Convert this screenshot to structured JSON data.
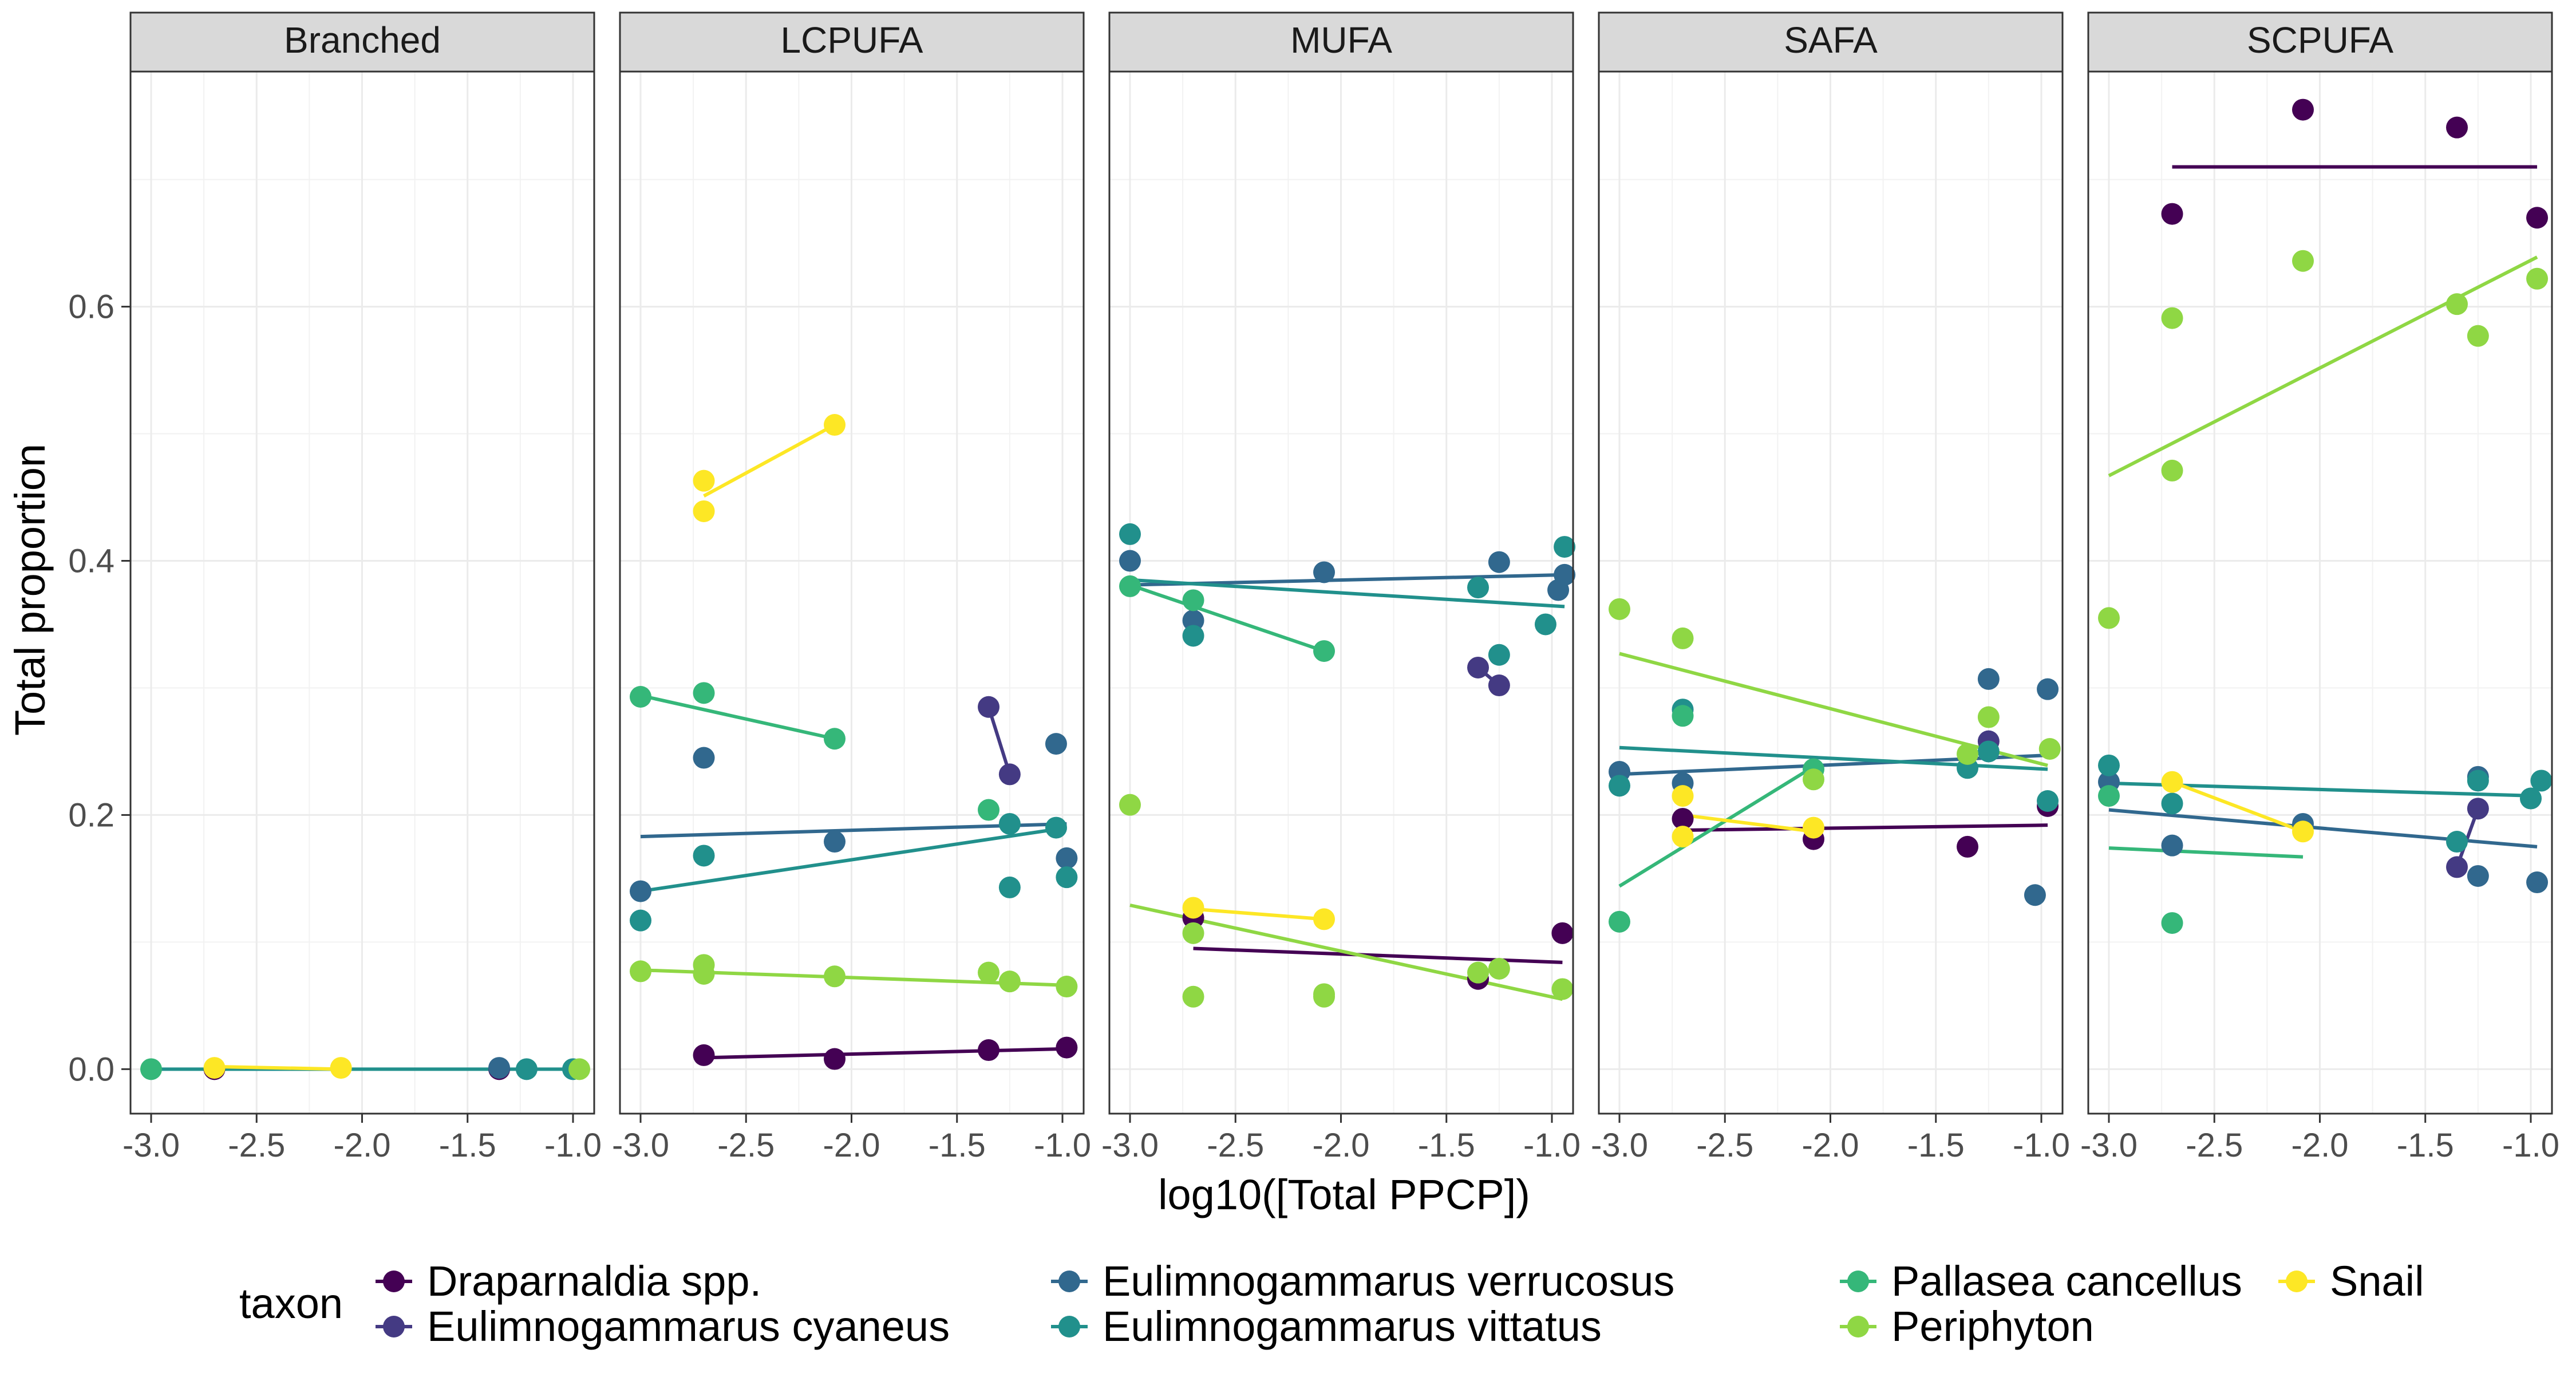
{
  "chart_data": {
    "type": "scatter",
    "xlabel": "log10([Total PPCP])",
    "ylabel": "Total proportion",
    "xlim": [
      -3.0,
      -0.9
    ],
    "ylim": [
      -0.035,
      0.785
    ],
    "x_ticks": [
      -3.0,
      -2.5,
      -2.0,
      -1.5,
      -1.0
    ],
    "x_tick_labels": [
      "-3.0",
      "-2.5",
      "-2.0",
      "-1.5",
      "-1.0"
    ],
    "y_ticks": [
      0.0,
      0.2,
      0.4,
      0.6
    ],
    "y_tick_labels": [
      "0.0",
      "0.2",
      "0.4",
      "0.6"
    ],
    "grid": true,
    "legend_title": "taxon",
    "legend_position": "bottom",
    "series": [
      {
        "name": "Draparnaldia spp.",
        "color": "#440154"
      },
      {
        "name": "Eulimnogammarus cyaneus",
        "color": "#443A83"
      },
      {
        "name": "Eulimnogammarus verrucosus",
        "color": "#31688E"
      },
      {
        "name": "Eulimnogammarus vittatus",
        "color": "#21908C"
      },
      {
        "name": "Pallasea cancellus",
        "color": "#35B779"
      },
      {
        "name": "Periphyton",
        "color": "#8FD744"
      },
      {
        "name": "Snail",
        "color": "#FDE725"
      }
    ],
    "panels": [
      {
        "title": "Branched",
        "points": [
          {
            "s": 0,
            "x": -2.7,
            "y": 0.0
          },
          {
            "s": 0,
            "x": -1.35,
            "y": 0.0
          },
          {
            "s": 2,
            "x": -1.35,
            "y": 0.001
          },
          {
            "s": 3,
            "x": -1.22,
            "y": 0.0
          },
          {
            "s": 3,
            "x": -1.0,
            "y": 0.0
          },
          {
            "s": 4,
            "x": -3.0,
            "y": 0.0
          },
          {
            "s": 5,
            "x": -0.97,
            "y": 0.0
          },
          {
            "s": 6,
            "x": -2.7,
            "y": 0.001
          },
          {
            "s": 6,
            "x": -2.1,
            "y": 0.001
          }
        ],
        "lines": [
          {
            "s": 3,
            "x": [
              -3.0,
              -0.97
            ],
            "y": [
              0.0,
              0.0
            ]
          },
          {
            "s": 6,
            "x": [
              -2.7,
              -2.1
            ],
            "y": [
              0.002,
              0.0
            ]
          }
        ]
      },
      {
        "title": "LCPUFA",
        "points": [
          {
            "s": 0,
            "x": -2.7,
            "y": 0.011
          },
          {
            "s": 0,
            "x": -2.08,
            "y": 0.008
          },
          {
            "s": 0,
            "x": -1.35,
            "y": 0.015
          },
          {
            "s": 0,
            "x": -0.98,
            "y": 0.017
          },
          {
            "s": 1,
            "x": -1.35,
            "y": 0.285
          },
          {
            "s": 1,
            "x": -1.25,
            "y": 0.232
          },
          {
            "s": 2,
            "x": -3.0,
            "y": 0.14
          },
          {
            "s": 2,
            "x": -2.7,
            "y": 0.245
          },
          {
            "s": 2,
            "x": -2.08,
            "y": 0.179
          },
          {
            "s": 2,
            "x": -1.03,
            "y": 0.256
          },
          {
            "s": 2,
            "x": -0.98,
            "y": 0.166
          },
          {
            "s": 3,
            "x": -3.0,
            "y": 0.117
          },
          {
            "s": 3,
            "x": -2.7,
            "y": 0.168
          },
          {
            "s": 3,
            "x": -1.25,
            "y": 0.143
          },
          {
            "s": 3,
            "x": -1.25,
            "y": 0.193
          },
          {
            "s": 3,
            "x": -1.03,
            "y": 0.19
          },
          {
            "s": 3,
            "x": -0.98,
            "y": 0.151
          },
          {
            "s": 4,
            "x": -3.0,
            "y": 0.293
          },
          {
            "s": 4,
            "x": -2.7,
            "y": 0.296
          },
          {
            "s": 4,
            "x": -2.08,
            "y": 0.26
          },
          {
            "s": 4,
            "x": -1.35,
            "y": 0.204
          },
          {
            "s": 5,
            "x": -3.0,
            "y": 0.077
          },
          {
            "s": 5,
            "x": -2.7,
            "y": 0.082
          },
          {
            "s": 5,
            "x": -2.7,
            "y": 0.075
          },
          {
            "s": 5,
            "x": -2.08,
            "y": 0.073
          },
          {
            "s": 5,
            "x": -1.35,
            "y": 0.076
          },
          {
            "s": 5,
            "x": -1.25,
            "y": 0.069
          },
          {
            "s": 5,
            "x": -0.98,
            "y": 0.065
          },
          {
            "s": 6,
            "x": -2.7,
            "y": 0.463
          },
          {
            "s": 6,
            "x": -2.7,
            "y": 0.439
          },
          {
            "s": 6,
            "x": -2.08,
            "y": 0.507
          }
        ],
        "lines": [
          {
            "s": 0,
            "x": [
              -2.7,
              -0.98
            ],
            "y": [
              0.009,
              0.016
            ]
          },
          {
            "s": 1,
            "x": [
              -1.35,
              -1.25
            ],
            "y": [
              0.285,
              0.232
            ]
          },
          {
            "s": 2,
            "x": [
              -3.0,
              -0.98
            ],
            "y": [
              0.183,
              0.193
            ]
          },
          {
            "s": 3,
            "x": [
              -3.0,
              -0.98
            ],
            "y": [
              0.14,
              0.19
            ]
          },
          {
            "s": 4,
            "x": [
              -3.0,
              -2.08
            ],
            "y": [
              0.294,
              0.26
            ]
          },
          {
            "s": 5,
            "x": [
              -3.0,
              -0.98
            ],
            "y": [
              0.078,
              0.066
            ]
          },
          {
            "s": 6,
            "x": [
              -2.7,
              -2.08
            ],
            "y": [
              0.451,
              0.507
            ]
          }
        ]
      },
      {
        "title": "MUFA",
        "points": [
          {
            "s": 0,
            "x": -2.7,
            "y": 0.119
          },
          {
            "s": 0,
            "x": -1.35,
            "y": 0.071
          },
          {
            "s": 0,
            "x": -0.95,
            "y": 0.107
          },
          {
            "s": 1,
            "x": -1.35,
            "y": 0.316
          },
          {
            "s": 1,
            "x": -1.25,
            "y": 0.302
          },
          {
            "s": 2,
            "x": -3.0,
            "y": 0.4
          },
          {
            "s": 2,
            "x": -2.7,
            "y": 0.353
          },
          {
            "s": 2,
            "x": -2.08,
            "y": 0.391
          },
          {
            "s": 2,
            "x": -1.25,
            "y": 0.399
          },
          {
            "s": 2,
            "x": -0.97,
            "y": 0.377
          },
          {
            "s": 2,
            "x": -0.94,
            "y": 0.389
          },
          {
            "s": 3,
            "x": -3.0,
            "y": 0.421
          },
          {
            "s": 3,
            "x": -2.7,
            "y": 0.341
          },
          {
            "s": 3,
            "x": -1.35,
            "y": 0.379
          },
          {
            "s": 3,
            "x": -1.25,
            "y": 0.326
          },
          {
            "s": 3,
            "x": -1.03,
            "y": 0.35
          },
          {
            "s": 3,
            "x": -0.94,
            "y": 0.411
          },
          {
            "s": 4,
            "x": -3.0,
            "y": 0.38
          },
          {
            "s": 4,
            "x": -2.7,
            "y": 0.369
          },
          {
            "s": 4,
            "x": -2.08,
            "y": 0.329
          },
          {
            "s": 5,
            "x": -3.0,
            "y": 0.208
          },
          {
            "s": 5,
            "x": -2.7,
            "y": 0.057
          },
          {
            "s": 5,
            "x": -2.7,
            "y": 0.107
          },
          {
            "s": 5,
            "x": -2.08,
            "y": 0.057
          },
          {
            "s": 5,
            "x": -2.08,
            "y": 0.059
          },
          {
            "s": 5,
            "x": -1.25,
            "y": 0.079
          },
          {
            "s": 5,
            "x": -1.35,
            "y": 0.076
          },
          {
            "s": 5,
            "x": -0.95,
            "y": 0.063
          },
          {
            "s": 6,
            "x": -2.7,
            "y": 0.127
          },
          {
            "s": 6,
            "x": -2.08,
            "y": 0.118
          }
        ],
        "lines": [
          {
            "s": 0,
            "x": [
              -2.7,
              -0.95
            ],
            "y": [
              0.095,
              0.084
            ]
          },
          {
            "s": 1,
            "x": [
              -1.35,
              -1.25
            ],
            "y": [
              0.316,
              0.302
            ]
          },
          {
            "s": 2,
            "x": [
              -3.0,
              -0.94
            ],
            "y": [
              0.381,
              0.389
            ]
          },
          {
            "s": 3,
            "x": [
              -3.0,
              -0.94
            ],
            "y": [
              0.385,
              0.364
            ]
          },
          {
            "s": 4,
            "x": [
              -3.0,
              -2.08
            ],
            "y": [
              0.381,
              0.329
            ]
          },
          {
            "s": 5,
            "x": [
              -3.0,
              -0.95
            ],
            "y": [
              0.129,
              0.055
            ]
          },
          {
            "s": 6,
            "x": [
              -2.7,
              -2.08
            ],
            "y": [
              0.126,
              0.118
            ]
          }
        ]
      },
      {
        "title": "SAFA",
        "points": [
          {
            "s": 0,
            "x": -2.7,
            "y": 0.197
          },
          {
            "s": 0,
            "x": -2.08,
            "y": 0.181
          },
          {
            "s": 0,
            "x": -1.35,
            "y": 0.175
          },
          {
            "s": 0,
            "x": -0.97,
            "y": 0.207
          },
          {
            "s": 1,
            "x": -1.25,
            "y": 0.258
          },
          {
            "s": 2,
            "x": -3.0,
            "y": 0.234
          },
          {
            "s": 2,
            "x": -2.7,
            "y": 0.225
          },
          {
            "s": 2,
            "x": -1.25,
            "y": 0.307
          },
          {
            "s": 2,
            "x": -1.03,
            "y": 0.137
          },
          {
            "s": 2,
            "x": -0.97,
            "y": 0.299
          },
          {
            "s": 3,
            "x": -3.0,
            "y": 0.223
          },
          {
            "s": 3,
            "x": -2.7,
            "y": 0.283
          },
          {
            "s": 3,
            "x": -1.35,
            "y": 0.237
          },
          {
            "s": 3,
            "x": -1.25,
            "y": 0.25
          },
          {
            "s": 3,
            "x": -0.97,
            "y": 0.211
          },
          {
            "s": 4,
            "x": -3.0,
            "y": 0.116
          },
          {
            "s": 4,
            "x": -2.7,
            "y": 0.278
          },
          {
            "s": 4,
            "x": -2.08,
            "y": 0.236
          },
          {
            "s": 5,
            "x": -3.0,
            "y": 0.362
          },
          {
            "s": 5,
            "x": -2.7,
            "y": 0.339
          },
          {
            "s": 5,
            "x": -2.08,
            "y": 0.228
          },
          {
            "s": 5,
            "x": -1.35,
            "y": 0.248
          },
          {
            "s": 5,
            "x": -1.25,
            "y": 0.277
          },
          {
            "s": 5,
            "x": -0.96,
            "y": 0.252
          },
          {
            "s": 6,
            "x": -2.7,
            "y": 0.215
          },
          {
            "s": 6,
            "x": -2.7,
            "y": 0.183
          },
          {
            "s": 6,
            "x": -2.08,
            "y": 0.19
          }
        ],
        "lines": [
          {
            "s": 0,
            "x": [
              -2.7,
              -0.97
            ],
            "y": [
              0.188,
              0.192
            ]
          },
          {
            "s": 2,
            "x": [
              -3.0,
              -0.97
            ],
            "y": [
              0.232,
              0.247
            ]
          },
          {
            "s": 3,
            "x": [
              -3.0,
              -0.97
            ],
            "y": [
              0.253,
              0.236
            ]
          },
          {
            "s": 4,
            "x": [
              -3.0,
              -2.08
            ],
            "y": [
              0.144,
              0.238
            ]
          },
          {
            "s": 5,
            "x": [
              -3.0,
              -0.97
            ],
            "y": [
              0.327,
              0.239
            ]
          },
          {
            "s": 6,
            "x": [
              -2.7,
              -2.08
            ],
            "y": [
              0.2,
              0.187
            ]
          }
        ]
      },
      {
        "title": "SCPUFA",
        "points": [
          {
            "s": 0,
            "x": -2.7,
            "y": 0.673
          },
          {
            "s": 0,
            "x": -2.08,
            "y": 0.755
          },
          {
            "s": 0,
            "x": -1.35,
            "y": 0.741
          },
          {
            "s": 0,
            "x": -0.97,
            "y": 0.67
          },
          {
            "s": 1,
            "x": -1.35,
            "y": 0.159
          },
          {
            "s": 1,
            "x": -1.25,
            "y": 0.205
          },
          {
            "s": 2,
            "x": -3.0,
            "y": 0.226
          },
          {
            "s": 2,
            "x": -2.7,
            "y": 0.176
          },
          {
            "s": 2,
            "x": -2.08,
            "y": 0.193
          },
          {
            "s": 2,
            "x": -1.25,
            "y": 0.152
          },
          {
            "s": 2,
            "x": -1.25,
            "y": 0.23
          },
          {
            "s": 2,
            "x": -0.97,
            "y": 0.147
          },
          {
            "s": 3,
            "x": -3.0,
            "y": 0.239
          },
          {
            "s": 3,
            "x": -2.7,
            "y": 0.209
          },
          {
            "s": 3,
            "x": -1.35,
            "y": 0.179
          },
          {
            "s": 3,
            "x": -1.25,
            "y": 0.227
          },
          {
            "s": 3,
            "x": -0.95,
            "y": 0.227
          },
          {
            "s": 3,
            "x": -1.0,
            "y": 0.213
          },
          {
            "s": 4,
            "x": -3.0,
            "y": 0.215
          },
          {
            "s": 4,
            "x": -2.7,
            "y": 0.115
          },
          {
            "s": 5,
            "x": -3.0,
            "y": 0.355
          },
          {
            "s": 5,
            "x": -2.7,
            "y": 0.591
          },
          {
            "s": 5,
            "x": -2.7,
            "y": 0.471
          },
          {
            "s": 5,
            "x": -2.08,
            "y": 0.636
          },
          {
            "s": 5,
            "x": -1.35,
            "y": 0.602
          },
          {
            "s": 5,
            "x": -1.25,
            "y": 0.577
          },
          {
            "s": 5,
            "x": -0.97,
            "y": 0.622
          },
          {
            "s": 6,
            "x": -2.7,
            "y": 0.226
          },
          {
            "s": 6,
            "x": -2.08,
            "y": 0.187
          }
        ],
        "lines": [
          {
            "s": 0,
            "x": [
              -2.7,
              -0.97
            ],
            "y": [
              0.71,
              0.71
            ]
          },
          {
            "s": 1,
            "x": [
              -1.35,
              -1.25
            ],
            "y": [
              0.159,
              0.205
            ]
          },
          {
            "s": 2,
            "x": [
              -3.0,
              -0.97
            ],
            "y": [
              0.204,
              0.175
            ]
          },
          {
            "s": 3,
            "x": [
              -3.0,
              -0.97
            ],
            "y": [
              0.225,
              0.215
            ]
          },
          {
            "s": 4,
            "x": [
              -3.0,
              -2.08
            ],
            "y": [
              0.174,
              0.167
            ]
          },
          {
            "s": 5,
            "x": [
              -3.0,
              -0.97
            ],
            "y": [
              0.467,
              0.639
            ]
          },
          {
            "s": 6,
            "x": [
              -2.7,
              -2.08
            ],
            "y": [
              0.226,
              0.187
            ]
          }
        ]
      }
    ]
  }
}
